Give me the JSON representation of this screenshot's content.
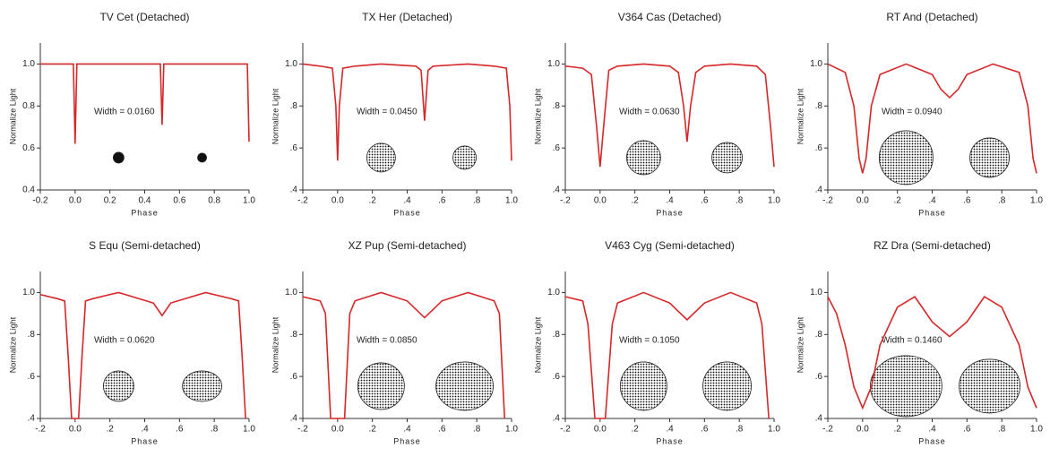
{
  "chart_data": [
    {
      "type": "line",
      "title": "TV Cet (Detached)",
      "annotation": "Width = 0.0160",
      "xlabel": "Phase",
      "ylabel": "Normalize Light",
      "color": "#d62728",
      "x": [
        -0.2,
        -0.01,
        0,
        0.01,
        0.49,
        0.5,
        0.51,
        0.99,
        1.0
      ],
      "values": [
        1.0,
        1.0,
        0.62,
        1.0,
        1.0,
        0.71,
        1.0,
        1.0,
        0.63
      ],
      "xlim": [
        -0.2,
        1.0
      ],
      "ylim": [
        0.4,
        1.1
      ],
      "xticks": [
        {
          "value": -0.2,
          "label": "-0.2"
        },
        {
          "value": 0,
          "label": "0.0"
        },
        {
          "value": 0.2,
          "label": "0.2"
        },
        {
          "value": 0.4,
          "label": "0.4"
        },
        {
          "value": 0.6,
          "label": "0.6"
        },
        {
          "value": 0.8,
          "label": "0.8"
        },
        {
          "value": 1,
          "label": "1.0"
        }
      ],
      "yticks": [
        {
          "value": 0.4,
          "label": "0.4"
        },
        {
          "value": 0.6,
          "label": "0.6"
        },
        {
          "value": 0.8,
          "label": "0.8"
        },
        {
          "value": 1,
          "label": "1.0"
        }
      ]
    },
    {
      "type": "line",
      "title": "TX Her (Detached)",
      "annotation": "Width = 0.0450",
      "xlabel": "Phase",
      "ylabel": "Normalize Light",
      "color": "#d62728",
      "x": [
        -0.2,
        -0.1,
        -0.03,
        -0.01,
        0,
        0.01,
        0.03,
        0.1,
        0.25,
        0.45,
        0.48,
        0.49,
        0.5,
        0.51,
        0.52,
        0.55,
        0.75,
        0.9,
        0.97,
        0.99,
        1.0
      ],
      "values": [
        1.0,
        0.99,
        0.98,
        0.8,
        0.54,
        0.8,
        0.98,
        0.99,
        1.0,
        0.99,
        0.97,
        0.85,
        0.73,
        0.85,
        0.97,
        0.99,
        1.0,
        0.99,
        0.98,
        0.8,
        0.54
      ],
      "xlim": [
        -0.2,
        1.0
      ],
      "ylim": [
        0.4,
        1.1
      ],
      "xticks": [
        {
          "value": -0.2,
          "label": "-.2"
        },
        {
          "value": 0,
          "label": "0.0"
        },
        {
          "value": 0.2,
          "label": ".2"
        },
        {
          "value": 0.4,
          "label": ".4"
        },
        {
          "value": 0.6,
          "label": ".6"
        },
        {
          "value": 0.8,
          "label": ".8"
        },
        {
          "value": 1,
          "label": "1.0"
        }
      ],
      "yticks": [
        {
          "value": 0.4,
          "label": ".4"
        },
        {
          "value": 0.6,
          "label": ".6"
        },
        {
          "value": 0.8,
          "label": ".8"
        },
        {
          "value": 1,
          "label": "1.0"
        }
      ]
    },
    {
      "type": "line",
      "title": "V364 Cas (Detached)",
      "annotation": "Width = 0.0630",
      "xlabel": "Phase",
      "ylabel": "Normalize Light",
      "color": "#d62728",
      "x": [
        -0.2,
        -0.1,
        -0.05,
        -0.02,
        0,
        0.02,
        0.05,
        0.1,
        0.25,
        0.4,
        0.45,
        0.48,
        0.5,
        0.52,
        0.55,
        0.6,
        0.75,
        0.9,
        0.95,
        0.98,
        1.0
      ],
      "values": [
        0.99,
        0.98,
        0.95,
        0.7,
        0.51,
        0.7,
        0.97,
        0.99,
        1.0,
        0.99,
        0.96,
        0.8,
        0.63,
        0.8,
        0.96,
        0.99,
        1.0,
        0.99,
        0.95,
        0.7,
        0.51
      ],
      "xlim": [
        -0.2,
        1.0
      ],
      "ylim": [
        0.4,
        1.1
      ],
      "xticks": [
        {
          "value": -0.2,
          "label": "-.2"
        },
        {
          "value": 0,
          "label": "0.0"
        },
        {
          "value": 0.2,
          "label": ".2"
        },
        {
          "value": 0.4,
          "label": ".4"
        },
        {
          "value": 0.6,
          "label": ".6"
        },
        {
          "value": 0.8,
          "label": ".8"
        },
        {
          "value": 1,
          "label": "1.0"
        }
      ],
      "yticks": [
        {
          "value": 0.4,
          "label": ".4"
        },
        {
          "value": 0.6,
          "label": ".6"
        },
        {
          "value": 0.8,
          "label": ".8"
        },
        {
          "value": 1,
          "label": "1.0"
        }
      ]
    },
    {
      "type": "line",
      "title": "RT And (Detached)",
      "annotation": "Width = 0.0940",
      "xlabel": "Phase",
      "ylabel": "Normalize Light",
      "color": "#d62728",
      "x": [
        -0.2,
        -0.1,
        -0.05,
        -0.02,
        0,
        0.02,
        0.05,
        0.1,
        0.25,
        0.4,
        0.45,
        0.5,
        0.55,
        0.6,
        0.75,
        0.9,
        0.95,
        0.98,
        1.0
      ],
      "values": [
        1.0,
        0.96,
        0.8,
        0.55,
        0.48,
        0.55,
        0.8,
        0.95,
        1.0,
        0.95,
        0.88,
        0.84,
        0.88,
        0.95,
        1.0,
        0.96,
        0.8,
        0.55,
        0.48
      ],
      "xlim": [
        -0.2,
        1.0
      ],
      "ylim": [
        0.4,
        1.1
      ],
      "xticks": [
        {
          "value": -0.2,
          "label": "-.2"
        },
        {
          "value": 0,
          "label": "0.0"
        },
        {
          "value": 0.2,
          "label": ".2"
        },
        {
          "value": 0.4,
          "label": ".4"
        },
        {
          "value": 0.6,
          "label": ".6"
        },
        {
          "value": 0.8,
          "label": ".8"
        },
        {
          "value": 1,
          "label": "1.0"
        }
      ],
      "yticks": [
        {
          "value": 0.4,
          "label": ".4"
        },
        {
          "value": 0.6,
          "label": ".6"
        },
        {
          "value": 0.8,
          "label": ".8"
        },
        {
          "value": 1,
          "label": "1.0"
        }
      ]
    },
    {
      "type": "line",
      "title": "S Equ (Semi-detached)",
      "annotation": "Width = 0.0620",
      "xlabel": "Phase",
      "ylabel": "Normalize Light",
      "color": "#d62728",
      "x": [
        -0.2,
        -0.1,
        -0.06,
        -0.04,
        -0.02,
        0.02,
        0.04,
        0.06,
        0.1,
        0.25,
        0.45,
        0.5,
        0.55,
        0.75,
        0.9,
        0.94,
        0.96,
        0.98
      ],
      "values": [
        0.99,
        0.97,
        0.96,
        0.7,
        0.4,
        0.4,
        0.7,
        0.96,
        0.97,
        1.0,
        0.95,
        0.89,
        0.95,
        1.0,
        0.97,
        0.96,
        0.7,
        0.4
      ],
      "xlim": [
        -0.2,
        1.0
      ],
      "ylim": [
        0.4,
        1.1
      ],
      "xticks": [
        {
          "value": -0.2,
          "label": "-.2"
        },
        {
          "value": 0,
          "label": "0.0"
        },
        {
          "value": 0.2,
          "label": ".2"
        },
        {
          "value": 0.4,
          "label": ".4"
        },
        {
          "value": 0.6,
          "label": ".6"
        },
        {
          "value": 0.8,
          "label": ".8"
        },
        {
          "value": 1,
          "label": "1.0"
        }
      ],
      "yticks": [
        {
          "value": 0.4,
          "label": ".4"
        },
        {
          "value": 0.6,
          "label": ".6"
        },
        {
          "value": 0.8,
          "label": ".8"
        },
        {
          "value": 1,
          "label": "1.0"
        }
      ]
    },
    {
      "type": "line",
      "title": "XZ Pup (Semi-detached)",
      "annotation": "Width = 0.0850",
      "xlabel": "Phase",
      "ylabel": "Normalize Light",
      "color": "#d62728",
      "x": [
        -0.2,
        -0.1,
        -0.07,
        -0.04,
        0.04,
        0.07,
        0.1,
        0.25,
        0.4,
        0.5,
        0.6,
        0.75,
        0.9,
        0.93,
        0.96
      ],
      "values": [
        0.98,
        0.96,
        0.9,
        0.4,
        0.4,
        0.9,
        0.96,
        1.0,
        0.96,
        0.88,
        0.96,
        1.0,
        0.96,
        0.9,
        0.4
      ],
      "xlim": [
        -0.2,
        1.0
      ],
      "ylim": [
        0.4,
        1.1
      ],
      "xticks": [
        {
          "value": -0.2,
          "label": "-.2"
        },
        {
          "value": 0,
          "label": "0.0"
        },
        {
          "value": 0.2,
          "label": ".2"
        },
        {
          "value": 0.4,
          "label": ".4"
        },
        {
          "value": 0.6,
          "label": ".6"
        },
        {
          "value": 0.8,
          "label": ".8"
        },
        {
          "value": 1,
          "label": "1.0"
        }
      ],
      "yticks": [
        {
          "value": 0.4,
          "label": ".4"
        },
        {
          "value": 0.6,
          "label": ".6"
        },
        {
          "value": 0.8,
          "label": ".8"
        },
        {
          "value": 1,
          "label": "1.0"
        }
      ]
    },
    {
      "type": "line",
      "title": "V463 Cyg (Semi-detached)",
      "annotation": "Width = 0.1050",
      "xlabel": "Phase",
      "ylabel": "Normalize Light",
      "color": "#d62728",
      "x": [
        -0.2,
        -0.1,
        -0.07,
        -0.03,
        0.03,
        0.07,
        0.1,
        0.25,
        0.4,
        0.5,
        0.6,
        0.75,
        0.9,
        0.93,
        0.97
      ],
      "values": [
        0.98,
        0.96,
        0.85,
        0.4,
        0.4,
        0.85,
        0.95,
        1.0,
        0.95,
        0.87,
        0.95,
        1.0,
        0.95,
        0.85,
        0.4
      ],
      "xlim": [
        -0.2,
        1.0
      ],
      "ylim": [
        0.4,
        1.1
      ],
      "xticks": [
        {
          "value": -0.2,
          "label": "-.2"
        },
        {
          "value": 0,
          "label": "0.0"
        },
        {
          "value": 0.2,
          "label": ".2"
        },
        {
          "value": 0.4,
          "label": ".4"
        },
        {
          "value": 0.6,
          "label": ".6"
        },
        {
          "value": 0.8,
          "label": ".8"
        },
        {
          "value": 1,
          "label": "1.0"
        }
      ],
      "yticks": [
        {
          "value": 0.4,
          "label": ".4"
        },
        {
          "value": 0.6,
          "label": ".6"
        },
        {
          "value": 0.8,
          "label": ".8"
        },
        {
          "value": 1,
          "label": "1.0"
        }
      ]
    },
    {
      "type": "line",
      "title": "RZ Dra (Semi-detached)",
      "annotation": "Width = 0.1460",
      "xlabel": "Phase",
      "ylabel": "Normalize Light",
      "color": "#d62728",
      "x": [
        -0.2,
        -0.15,
        -0.1,
        -0.05,
        0,
        0.05,
        0.1,
        0.2,
        0.3,
        0.4,
        0.5,
        0.6,
        0.7,
        0.8,
        0.9,
        0.95,
        1.0
      ],
      "values": [
        0.98,
        0.9,
        0.75,
        0.55,
        0.45,
        0.55,
        0.75,
        0.93,
        0.98,
        0.86,
        0.79,
        0.86,
        0.98,
        0.93,
        0.75,
        0.55,
        0.45
      ],
      "xlim": [
        -0.2,
        1.0
      ],
      "ylim": [
        0.4,
        1.1
      ],
      "xticks": [
        {
          "value": -0.2,
          "label": "-.2"
        },
        {
          "value": 0,
          "label": "0.0"
        },
        {
          "value": 0.2,
          "label": ".2"
        },
        {
          "value": 0.4,
          "label": ".4"
        },
        {
          "value": 0.6,
          "label": ".6"
        },
        {
          "value": 0.8,
          "label": ".8"
        },
        {
          "value": 1,
          "label": "1.0"
        }
      ],
      "yticks": [
        {
          "value": 0.4,
          "label": ".4"
        },
        {
          "value": 0.6,
          "label": ".6"
        },
        {
          "value": 0.8,
          "label": ".8"
        },
        {
          "value": 1,
          "label": "1.0"
        }
      ]
    }
  ]
}
